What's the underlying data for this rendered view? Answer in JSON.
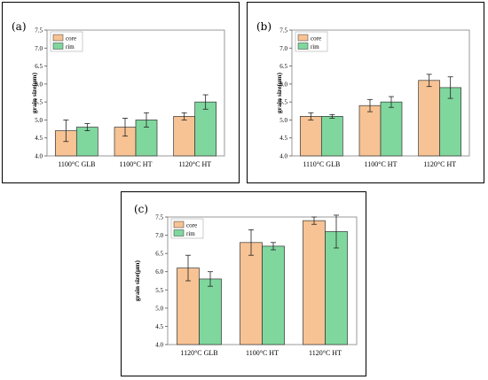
{
  "colors": {
    "core": "#f7c394",
    "rim": "#7fd79e",
    "error": "#222222"
  },
  "chart_data": [
    {
      "type": "bar",
      "panel_label": "(a)",
      "categories": [
        "1100°C GLB",
        "1100°C HT",
        "1120°C HT"
      ],
      "ylabel": "grain size(μm)",
      "ylim": [
        4.0,
        7.5
      ],
      "yticks": [
        "4.0",
        "4.5",
        "5.0",
        "5.5",
        "6.0",
        "6.5",
        "7.0",
        "7.5"
      ],
      "legend_position": "top-left",
      "series": [
        {
          "name": "core",
          "values": [
            4.7,
            4.8,
            5.1
          ],
          "errors": [
            0.3,
            0.25,
            0.1
          ]
        },
        {
          "name": "rim",
          "values": [
            4.8,
            5.0,
            5.5
          ],
          "errors": [
            0.1,
            0.2,
            0.2
          ]
        }
      ]
    },
    {
      "type": "bar",
      "panel_label": "(b)",
      "categories": [
        "1110°C GLB",
        "1100°C HT",
        "1120°C HT"
      ],
      "ylabel": "grain size(μm)",
      "ylim": [
        4.0,
        7.5
      ],
      "yticks": [
        "4.0",
        "4.5",
        "5.0",
        "5.5",
        "6.0",
        "6.5",
        "7.0",
        "7.5"
      ],
      "legend_position": "top-left",
      "series": [
        {
          "name": "core",
          "values": [
            5.1,
            5.4,
            6.1
          ],
          "errors": [
            0.1,
            0.17,
            0.17
          ]
        },
        {
          "name": "rim",
          "values": [
            5.1,
            5.5,
            5.9
          ],
          "errors": [
            0.05,
            0.15,
            0.3
          ]
        }
      ]
    },
    {
      "type": "bar",
      "panel_label": "(c)",
      "categories": [
        "1120°C GLB",
        "1100°C HT",
        "1120°C HT"
      ],
      "ylabel": "grain size(μm)",
      "ylim": [
        4.0,
        7.5
      ],
      "yticks": [
        "4.0",
        "4.5",
        "5.0",
        "5.5",
        "6.0",
        "6.5",
        "7.0",
        "7.5"
      ],
      "legend_position": "top-left",
      "series": [
        {
          "name": "core",
          "values": [
            6.1,
            6.8,
            7.4
          ],
          "errors": [
            0.35,
            0.35,
            0.1
          ]
        },
        {
          "name": "rim",
          "values": [
            5.8,
            6.7,
            7.1
          ],
          "errors": [
            0.2,
            0.1,
            0.45
          ]
        }
      ]
    }
  ]
}
